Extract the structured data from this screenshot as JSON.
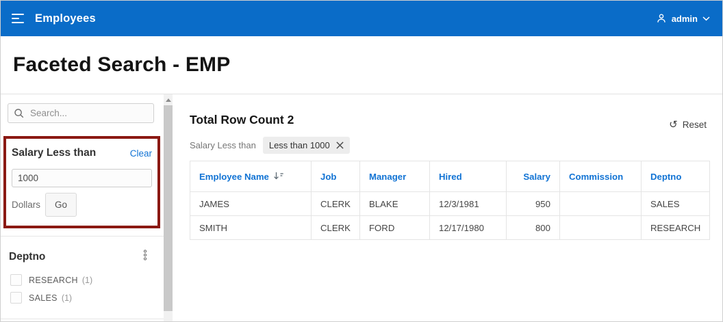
{
  "colors": {
    "header_bg": "#0a6cc8",
    "link": "#1173d4",
    "highlight_border": "#8b1913"
  },
  "topbar": {
    "app_title": "Employees",
    "user_label": "admin"
  },
  "page": {
    "title": "Faceted Search - EMP"
  },
  "sidebar": {
    "search_placeholder": "Search...",
    "salary_facet": {
      "title": "Salary Less than",
      "clear_label": "Clear",
      "value": "1000",
      "unit_label": "Dollars",
      "go_label": "Go"
    },
    "deptno_facet": {
      "title": "Deptno",
      "items": [
        {
          "label": "RESEARCH",
          "count": "(1)"
        },
        {
          "label": "SALES",
          "count": "(1)"
        }
      ]
    }
  },
  "main": {
    "row_count_title": "Total Row Count 2",
    "reset_label": "Reset",
    "filter_chip": {
      "prefix": "Salary Less than",
      "label": "Less than 1000"
    },
    "table": {
      "columns": [
        {
          "label": "Employee Name",
          "sorted": "desc"
        },
        {
          "label": "Job"
        },
        {
          "label": "Manager"
        },
        {
          "label": "Hired"
        },
        {
          "label": "Salary",
          "align": "right"
        },
        {
          "label": "Commission"
        },
        {
          "label": "Deptno"
        }
      ],
      "rows": [
        [
          "JAMES",
          "CLERK",
          "BLAKE",
          "12/3/1981",
          "950",
          "",
          "SALES"
        ],
        [
          "SMITH",
          "CLERK",
          "FORD",
          "12/17/1980",
          "800",
          "",
          "RESEARCH"
        ]
      ]
    }
  }
}
